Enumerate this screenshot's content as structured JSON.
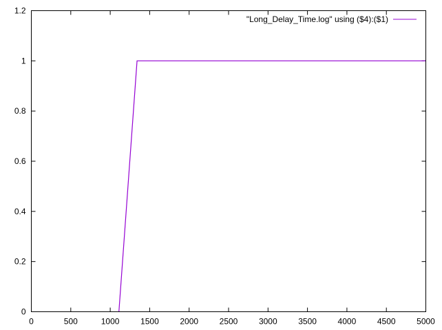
{
  "chart_data": {
    "type": "line",
    "title": "",
    "xlabel": "",
    "ylabel": "",
    "xlim": [
      0,
      5000
    ],
    "ylim": [
      0,
      1.2
    ],
    "x_ticks": [
      "0",
      "500",
      "1000",
      "1500",
      "2000",
      "2500",
      "3000",
      "3500",
      "4000",
      "4500",
      "5000"
    ],
    "y_ticks": [
      "0",
      "0.2",
      "0.4",
      "0.6",
      "0.8",
      "1",
      "1.2"
    ],
    "grid": false,
    "legend_position": "top-right",
    "series": [
      {
        "name": "\"Long_Delay_Time.log\" using ($4):($1)",
        "color": "#9400d3",
        "x": [
          1110,
          1340,
          5000
        ],
        "y": [
          0,
          1,
          1
        ]
      }
    ]
  }
}
